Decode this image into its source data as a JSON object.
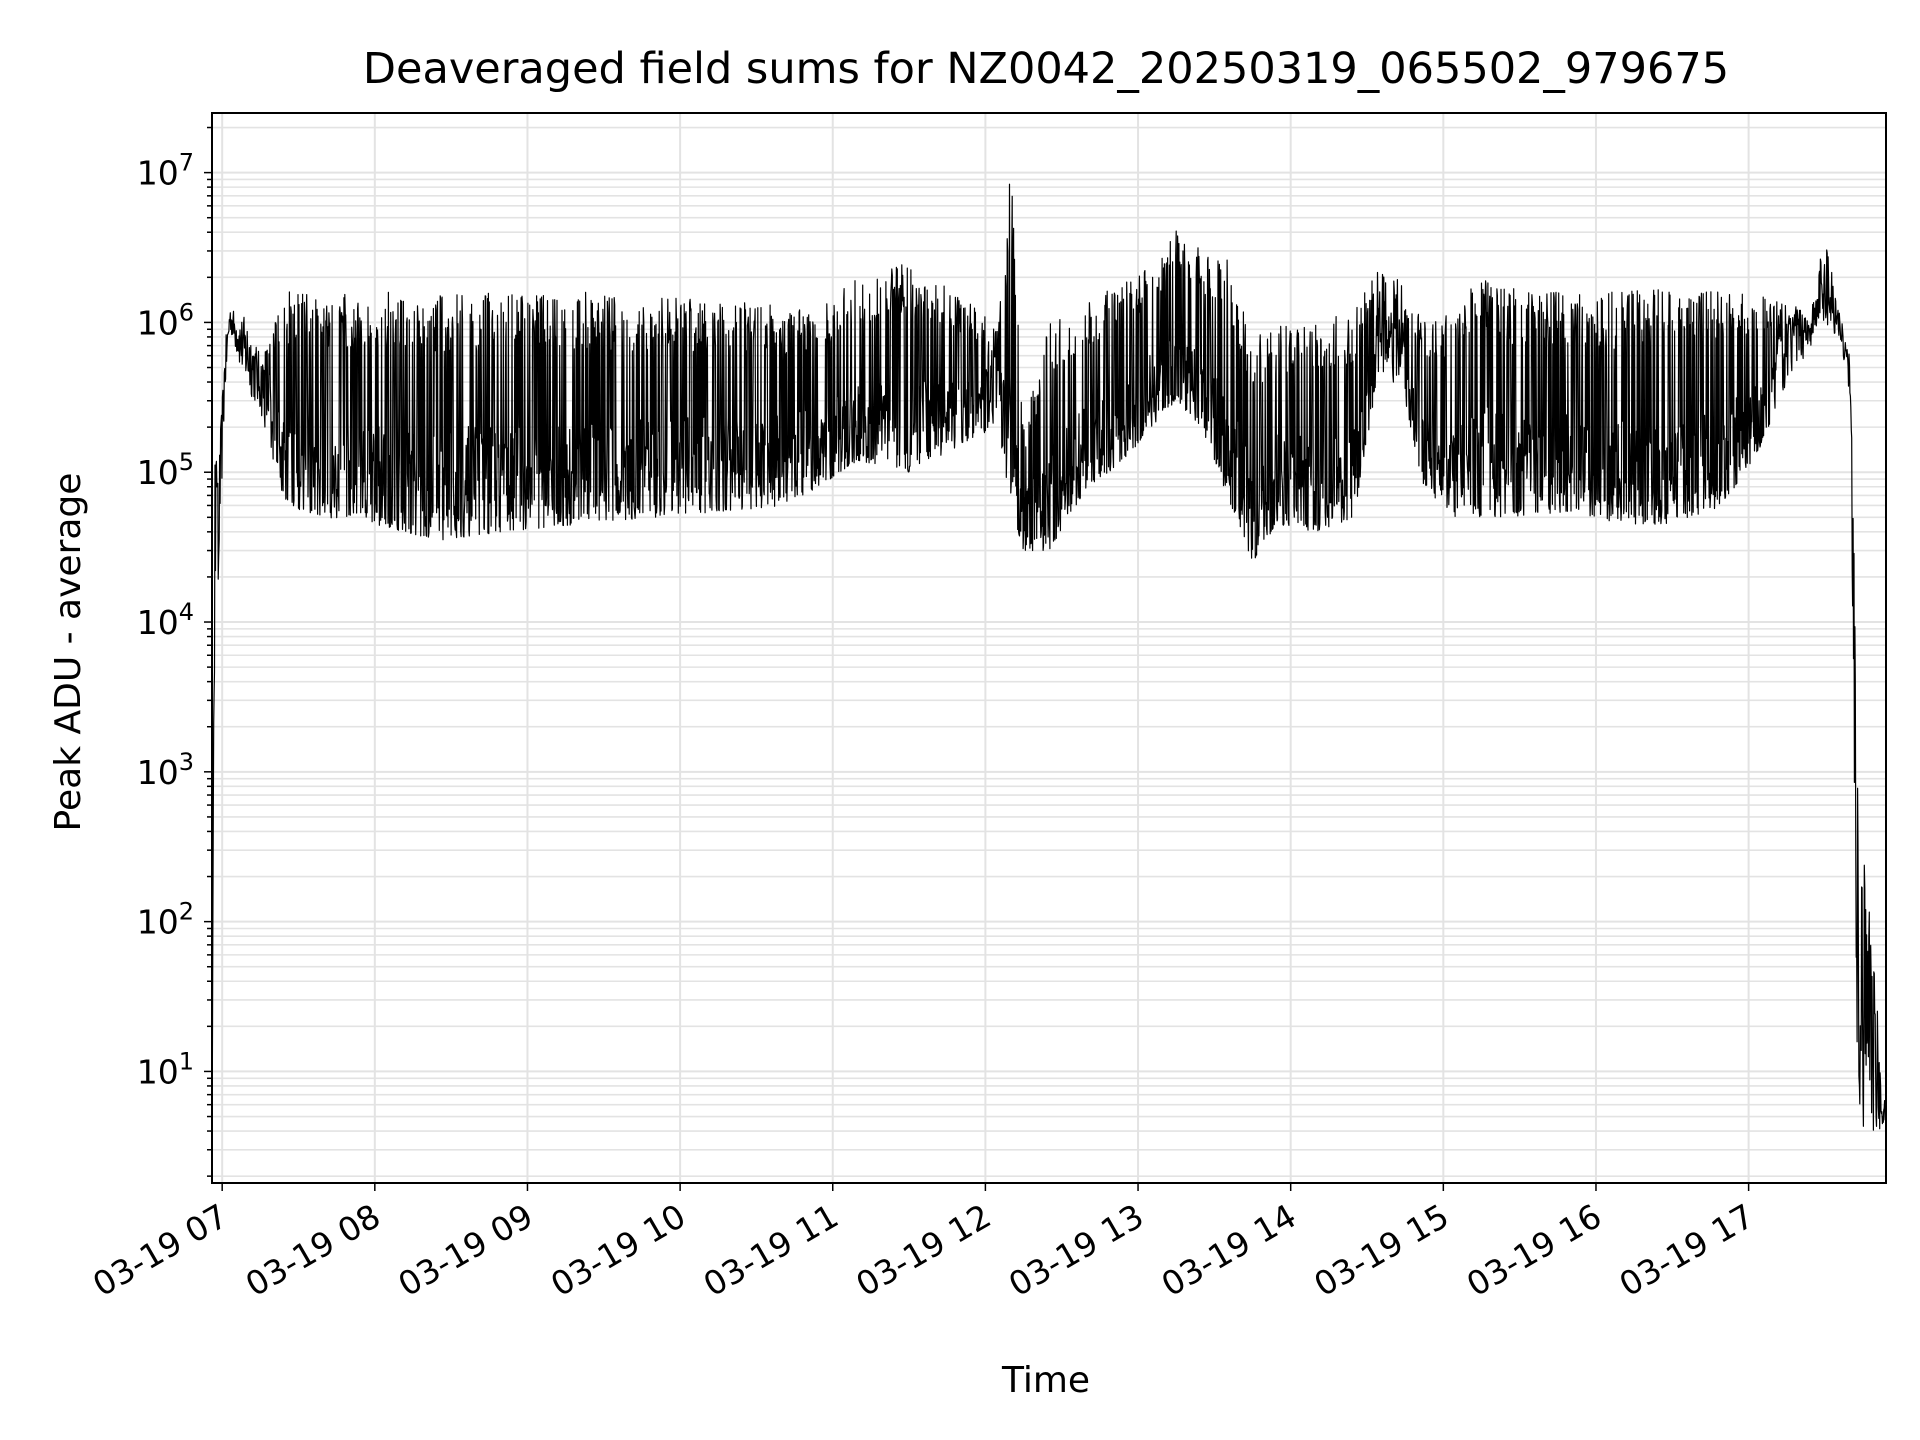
{
  "chart_data": {
    "type": "line",
    "title": "Deaveraged field sums for NZ0042_20250319_065502_979675",
    "xlabel": "Time",
    "ylabel": "Peak ADU - average",
    "yscale": "log",
    "grid": true,
    "legend": "none",
    "colors": {
      "line": "#000000",
      "grid": "#e3e3e3",
      "axes": "#000000",
      "background": "#ffffff"
    },
    "xlim": [
      "2025-03-19 06:56",
      "2025-03-19 17:54"
    ],
    "ylim": [
      1.8,
      25000000
    ],
    "x_ticks": [
      {
        "time": "2025-03-19 07:00",
        "label": "03-19 07"
      },
      {
        "time": "2025-03-19 08:00",
        "label": "03-19 08"
      },
      {
        "time": "2025-03-19 09:00",
        "label": "03-19 09"
      },
      {
        "time": "2025-03-19 10:00",
        "label": "03-19 10"
      },
      {
        "time": "2025-03-19 11:00",
        "label": "03-19 11"
      },
      {
        "time": "2025-03-19 12:00",
        "label": "03-19 12"
      },
      {
        "time": "2025-03-19 13:00",
        "label": "03-19 13"
      },
      {
        "time": "2025-03-19 14:00",
        "label": "03-19 14"
      },
      {
        "time": "2025-03-19 15:00",
        "label": "03-19 15"
      },
      {
        "time": "2025-03-19 16:00",
        "label": "03-19 16"
      },
      {
        "time": "2025-03-19 17:00",
        "label": "03-19 17"
      }
    ],
    "y_ticks": [
      {
        "value": 10,
        "base": "10",
        "exp": "1"
      },
      {
        "value": 100,
        "base": "10",
        "exp": "2"
      },
      {
        "value": 1000,
        "base": "10",
        "exp": "3"
      },
      {
        "value": 10000,
        "base": "10",
        "exp": "4"
      },
      {
        "value": 100000,
        "base": "10",
        "exp": "5"
      },
      {
        "value": 1000000,
        "base": "10",
        "exp": "6"
      },
      {
        "value": 10000000,
        "base": "10",
        "exp": "7"
      }
    ],
    "series": [
      {
        "envelope": [
          {
            "time": "2025-03-19 06:56",
            "low": 2,
            "high": 2
          },
          {
            "time": "2025-03-19 06:57",
            "low": 3500,
            "high": 140000
          },
          {
            "time": "2025-03-19 06:59",
            "low": 30000,
            "high": 150000
          },
          {
            "time": "2025-03-19 07:01",
            "low": 300000,
            "high": 700000
          },
          {
            "time": "2025-03-19 07:03",
            "low": 900000,
            "high": 1300000
          },
          {
            "time": "2025-03-19 07:07",
            "low": 500000,
            "high": 1100000
          },
          {
            "time": "2025-03-19 07:10",
            "low": 350000,
            "high": 1100000
          },
          {
            "time": "2025-03-19 07:15",
            "low": 250000,
            "high": 600000
          },
          {
            "time": "2025-03-19 07:25",
            "low": 60000,
            "high": 1600000
          },
          {
            "time": "2025-03-19 07:40",
            "low": 50000,
            "high": 1600000
          },
          {
            "time": "2025-03-19 08:00",
            "low": 45000,
            "high": 1600000
          },
          {
            "time": "2025-03-19 08:25",
            "low": 35000,
            "high": 1600000
          },
          {
            "time": "2025-03-19 08:50",
            "low": 40000,
            "high": 1600000
          },
          {
            "time": "2025-03-19 09:20",
            "low": 45000,
            "high": 1600000
          },
          {
            "time": "2025-03-19 09:50",
            "low": 50000,
            "high": 1500000
          },
          {
            "time": "2025-03-19 10:20",
            "low": 55000,
            "high": 1400000
          },
          {
            "time": "2025-03-19 10:40",
            "low": 60000,
            "high": 1300000
          },
          {
            "time": "2025-03-19 10:55",
            "low": 80000,
            "high": 1300000
          },
          {
            "time": "2025-03-19 11:10",
            "low": 120000,
            "high": 2000000
          },
          {
            "time": "2025-03-19 11:30",
            "low": 100000,
            "high": 2500000
          },
          {
            "time": "2025-03-19 11:50",
            "low": 150000,
            "high": 1500000
          },
          {
            "time": "2025-03-19 12:05",
            "low": 200000,
            "high": 1000000
          },
          {
            "time": "2025-03-19 12:10",
            "low": 60000,
            "high": 11500000
          },
          {
            "time": "2025-03-19 12:15",
            "low": 30000,
            "high": 200000
          },
          {
            "time": "2025-03-19 12:25",
            "low": 30000,
            "high": 1000000
          },
          {
            "time": "2025-03-19 12:40",
            "low": 80000,
            "high": 1400000
          },
          {
            "time": "2025-03-19 12:55",
            "low": 120000,
            "high": 1900000
          },
          {
            "time": "2025-03-19 13:05",
            "low": 200000,
            "high": 2500000
          },
          {
            "time": "2025-03-19 13:15",
            "low": 300000,
            "high": 4200000
          },
          {
            "time": "2025-03-19 13:25",
            "low": 200000,
            "high": 3000000
          },
          {
            "time": "2025-03-19 13:35",
            "low": 70000,
            "high": 3100000
          },
          {
            "time": "2025-03-19 13:45",
            "low": 25000,
            "high": 800000
          },
          {
            "time": "2025-03-19 13:55",
            "low": 45000,
            "high": 1000000
          },
          {
            "time": "2025-03-19 14:10",
            "low": 40000,
            "high": 1000000
          },
          {
            "time": "2025-03-19 14:25",
            "low": 50000,
            "high": 1200000
          },
          {
            "time": "2025-03-19 14:35",
            "low": 500000,
            "high": 2400000
          },
          {
            "time": "2025-03-19 14:45",
            "low": 300000,
            "high": 1800000
          },
          {
            "time": "2025-03-19 14:52",
            "low": 80000,
            "high": 1000000
          },
          {
            "time": "2025-03-19 15:05",
            "low": 50000,
            "high": 1300000
          },
          {
            "time": "2025-03-19 15:15",
            "low": 50000,
            "high": 2300000
          },
          {
            "time": "2025-03-19 15:30",
            "low": 50000,
            "high": 1600000
          },
          {
            "time": "2025-03-19 15:50",
            "low": 55000,
            "high": 1600000
          },
          {
            "time": "2025-03-19 16:10",
            "low": 45000,
            "high": 1600000
          },
          {
            "time": "2025-03-19 16:30",
            "low": 45000,
            "high": 1700000
          },
          {
            "time": "2025-03-19 16:50",
            "low": 60000,
            "high": 1700000
          },
          {
            "time": "2025-03-19 17:05",
            "low": 150000,
            "high": 1500000
          },
          {
            "time": "2025-03-19 17:15",
            "low": 400000,
            "high": 1300000
          },
          {
            "time": "2025-03-19 17:25",
            "low": 700000,
            "high": 1300000
          },
          {
            "time": "2025-03-19 17:30",
            "low": 900000,
            "high": 4500000
          },
          {
            "time": "2025-03-19 17:36",
            "low": 800000,
            "high": 1100000
          },
          {
            "time": "2025-03-19 17:40",
            "low": 300000,
            "high": 600000
          },
          {
            "time": "2025-03-19 17:43",
            "low": 4,
            "high": 1000
          },
          {
            "time": "2025-03-19 17:54",
            "low": 4,
            "high": 5
          }
        ]
      }
    ]
  }
}
